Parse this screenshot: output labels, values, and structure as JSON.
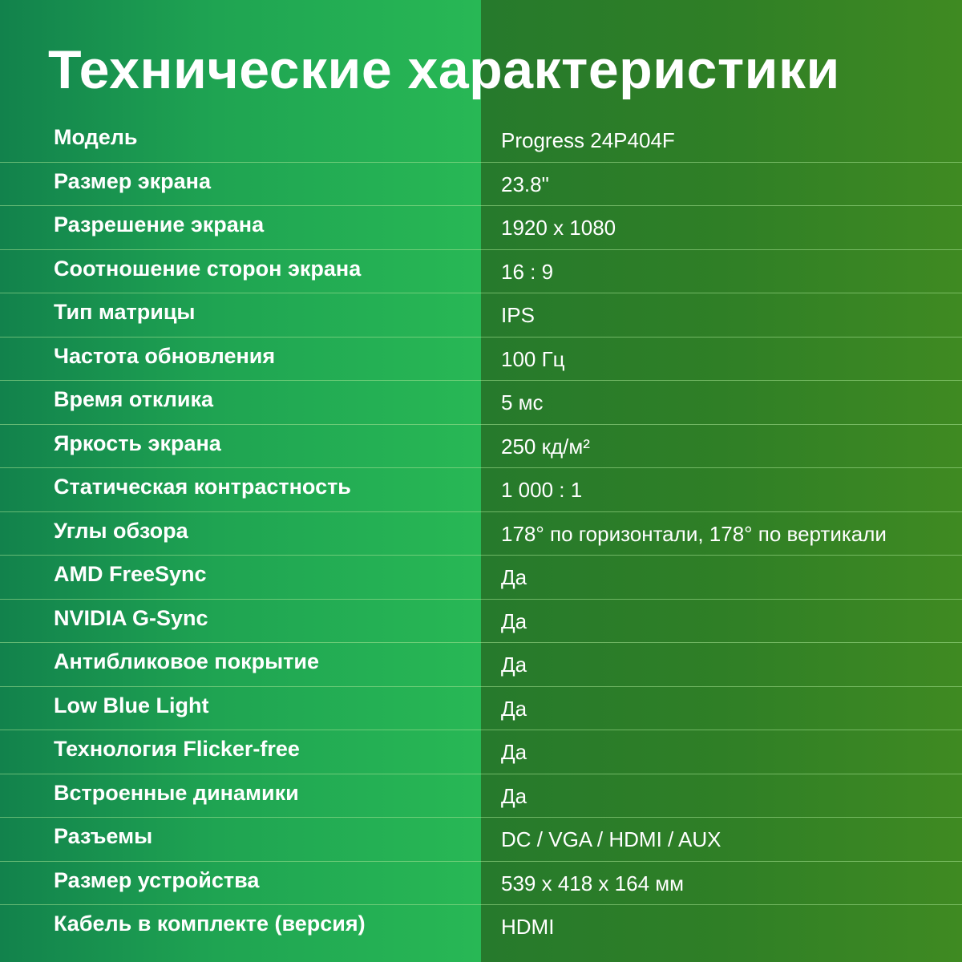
{
  "title": "Технические характеристики",
  "colors": {
    "left_panel": "#1fa452",
    "right_panel": "#2f7f26",
    "text": "#ffffff"
  },
  "specs": [
    {
      "label": "Модель",
      "value": "Progress 24P404F"
    },
    {
      "label": "Размер экрана",
      "value": "23.8\""
    },
    {
      "label": "Разрешение экрана",
      "value": "1920 x 1080"
    },
    {
      "label": "Соотношение сторон экрана",
      "value": "16 : 9"
    },
    {
      "label": "Тип матрицы",
      "value": "IPS"
    },
    {
      "label": "Частота обновления",
      "value": "100 Гц"
    },
    {
      "label": "Время отклика",
      "value": "5 мс"
    },
    {
      "label": "Яркость экрана",
      "value": "250 кд/м²"
    },
    {
      "label": "Статическая контрастность",
      "value": "1 000 : 1"
    },
    {
      "label": "Углы обзора",
      "value": "178° по горизонтали, 178° по вертикали"
    },
    {
      "label": "AMD FreeSync",
      "value": "Да"
    },
    {
      "label": "NVIDIA G-Sync",
      "value": "Да"
    },
    {
      "label": "Антибликовое покрытие",
      "value": "Да"
    },
    {
      "label": "Low Blue Light",
      "value": "Да"
    },
    {
      "label": "Технология  Flicker-free",
      "value": "Да"
    },
    {
      "label": "Встроенные динамики",
      "value": "Да"
    },
    {
      "label": "Разъемы",
      "value": "DC / VGA / HDMI / AUX"
    },
    {
      "label": "Размер устройства",
      "value": "539 x 418 x 164 мм"
    },
    {
      "label": "Кабель в комплекте (версия)",
      "value": "HDMI"
    }
  ]
}
